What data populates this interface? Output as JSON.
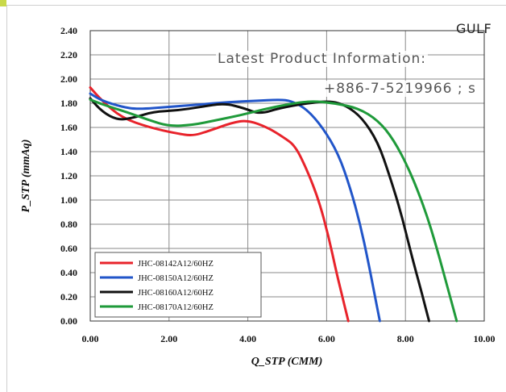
{
  "overlay": {
    "brand": "GULF",
    "info": "Latest Product Information:",
    "phone": "+886-7-5219966 ; s"
  },
  "colors": {
    "background": "#ffffff",
    "grid": "#8a8a8a",
    "frame": "#cfcfcf",
    "corner_mark": "#c9d94a"
  },
  "chart_data": {
    "type": "line",
    "title": "",
    "xlabel": "Q_STP (CMM)",
    "ylabel": "P_STP (mmAq)",
    "xlim": [
      0,
      10
    ],
    "ylim": [
      0,
      2.4
    ],
    "x_ticks": [
      "0.00",
      "2.00",
      "4.00",
      "6.00",
      "8.00",
      "10.00"
    ],
    "y_ticks": [
      "0.00",
      "0.20",
      "0.40",
      "0.60",
      "0.80",
      "1.00",
      "1.20",
      "1.40",
      "1.60",
      "1.80",
      "2.00",
      "2.20",
      "2.40"
    ],
    "grid": true,
    "legend_position": "bottom-left",
    "series": [
      {
        "name": "JHC-08142A12/60HZ",
        "color": "#e8232b",
        "points": [
          [
            0.0,
            1.93
          ],
          [
            0.3,
            1.82
          ],
          [
            0.8,
            1.68
          ],
          [
            1.5,
            1.6
          ],
          [
            2.2,
            1.55
          ],
          [
            2.6,
            1.53
          ],
          [
            3.0,
            1.57
          ],
          [
            3.6,
            1.64
          ],
          [
            4.0,
            1.66
          ],
          [
            4.5,
            1.6
          ],
          [
            4.9,
            1.52
          ],
          [
            5.2,
            1.45
          ],
          [
            5.5,
            1.25
          ],
          [
            5.8,
            1.0
          ],
          [
            6.05,
            0.7
          ],
          [
            6.25,
            0.4
          ],
          [
            6.4,
            0.2
          ],
          [
            6.55,
            0.0
          ]
        ]
      },
      {
        "name": "JHC-08150A12/60HZ",
        "color": "#2155c9",
        "points": [
          [
            0.0,
            1.88
          ],
          [
            0.3,
            1.82
          ],
          [
            0.8,
            1.77
          ],
          [
            1.2,
            1.75
          ],
          [
            2.0,
            1.77
          ],
          [
            2.8,
            1.79
          ],
          [
            3.5,
            1.81
          ],
          [
            4.2,
            1.82
          ],
          [
            4.8,
            1.83
          ],
          [
            5.1,
            1.82
          ],
          [
            5.5,
            1.75
          ],
          [
            5.9,
            1.6
          ],
          [
            6.3,
            1.38
          ],
          [
            6.6,
            1.1
          ],
          [
            6.85,
            0.8
          ],
          [
            7.05,
            0.5
          ],
          [
            7.2,
            0.25
          ],
          [
            7.35,
            0.0
          ]
        ]
      },
      {
        "name": "JHC-08160A12/60HZ",
        "color": "#111111",
        "points": [
          [
            0.0,
            1.84
          ],
          [
            0.3,
            1.73
          ],
          [
            0.7,
            1.66
          ],
          [
            1.1,
            1.68
          ],
          [
            1.6,
            1.73
          ],
          [
            2.2,
            1.74
          ],
          [
            2.8,
            1.77
          ],
          [
            3.4,
            1.8
          ],
          [
            3.9,
            1.76
          ],
          [
            4.3,
            1.71
          ],
          [
            4.8,
            1.76
          ],
          [
            5.5,
            1.8
          ],
          [
            6.1,
            1.82
          ],
          [
            6.5,
            1.78
          ],
          [
            6.9,
            1.68
          ],
          [
            7.3,
            1.48
          ],
          [
            7.6,
            1.2
          ],
          [
            7.9,
            0.88
          ],
          [
            8.15,
            0.55
          ],
          [
            8.4,
            0.25
          ],
          [
            8.6,
            0.0
          ]
        ]
      },
      {
        "name": "JHC-08170A12/60HZ",
        "color": "#1f9a3a",
        "points": [
          [
            0.0,
            1.83
          ],
          [
            0.4,
            1.78
          ],
          [
            0.9,
            1.73
          ],
          [
            1.5,
            1.66
          ],
          [
            2.0,
            1.61
          ],
          [
            2.6,
            1.62
          ],
          [
            3.2,
            1.66
          ],
          [
            3.8,
            1.7
          ],
          [
            4.4,
            1.75
          ],
          [
            5.0,
            1.79
          ],
          [
            5.6,
            1.82
          ],
          [
            6.2,
            1.8
          ],
          [
            6.8,
            1.76
          ],
          [
            7.3,
            1.66
          ],
          [
            7.7,
            1.5
          ],
          [
            8.1,
            1.25
          ],
          [
            8.5,
            0.92
          ],
          [
            8.8,
            0.6
          ],
          [
            9.05,
            0.3
          ],
          [
            9.3,
            0.0
          ]
        ]
      }
    ]
  }
}
